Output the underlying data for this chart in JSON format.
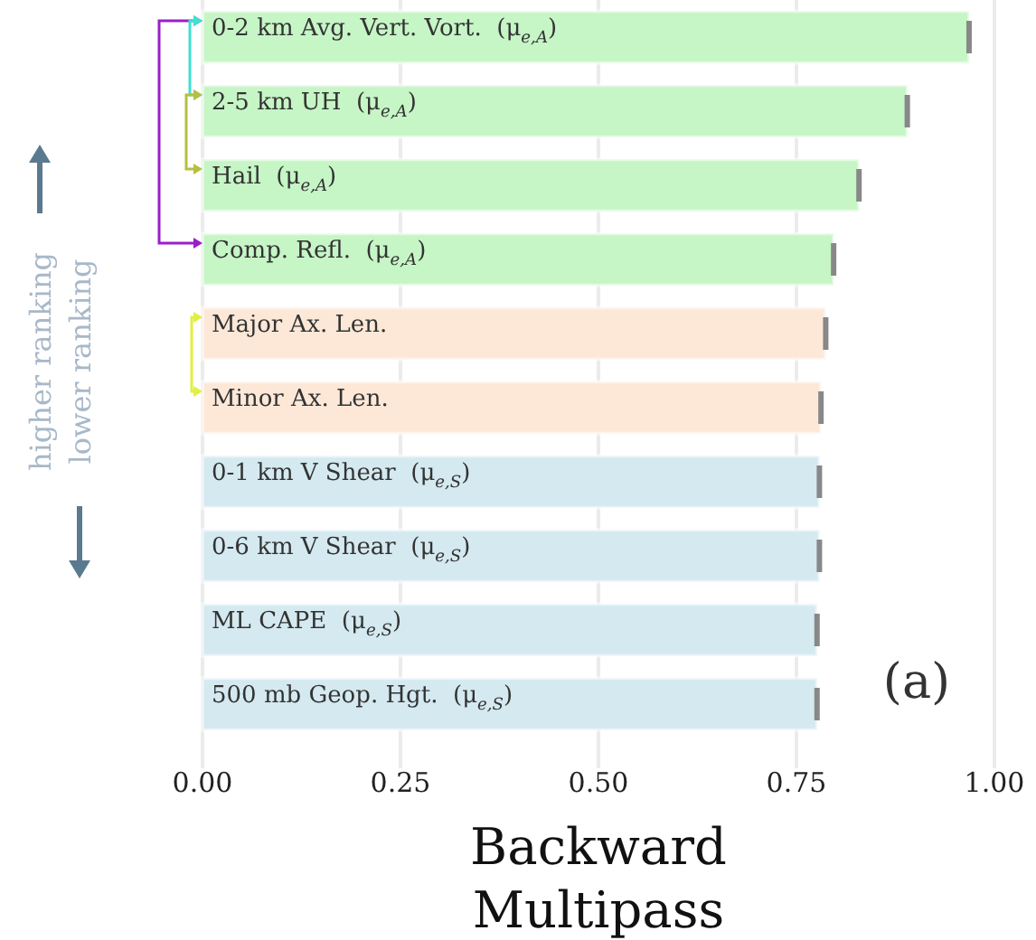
{
  "chart_data": {
    "type": "bar",
    "orientation": "horizontal",
    "xlabel": "Backward Multipass",
    "categories": [
      "0-2 km Avg. Vert. Vort.  (μ$_{e,A}$)",
      "2-5 km UH  (μ$_{e,A}$)",
      "Hail  (μ$_{e,A}$)",
      "Comp. Refl.  (μ$_{e,A}$)",
      "Major Ax. Len.",
      "Minor Ax. Len.",
      "0-1 km V Shear  (μ$_{e,S}$)",
      "0-6 km V Shear  (μ$_{e,S}$)",
      "ML CAPE  (μ$_{e,S}$)",
      "500 mb Geop. Hgt.  (μ$_{e,S}$)"
    ],
    "values": [
      0.968,
      0.89,
      0.829,
      0.797,
      0.787,
      0.781,
      0.779,
      0.779,
      0.776,
      0.776
    ],
    "errors": [
      0.002,
      0.002,
      0.002,
      0.002,
      0.002,
      0.002,
      0.002,
      0.002,
      0.002,
      0.002
    ],
    "colors": [
      "#c6f5c6",
      "#c6f5c6",
      "#c6f5c6",
      "#c6f5c6",
      "#fde8d8",
      "#fde8d8",
      "#d4e9f0",
      "#d4e9f0",
      "#d4e9f0",
      "#d4e9f0"
    ],
    "xlim": [
      0,
      1
    ],
    "xticks": [
      {
        "value": 0,
        "label": "0.00"
      },
      {
        "value": 0.25,
        "label": "0.25"
      },
      {
        "value": 0.5,
        "label": "0.50"
      },
      {
        "value": 0.75,
        "label": "0.75"
      },
      {
        "value": 1,
        "label": "1.00"
      }
    ],
    "grid": "x",
    "annotations": [
      "higher ranking",
      "lower ranking",
      "(a)"
    ]
  }
}
